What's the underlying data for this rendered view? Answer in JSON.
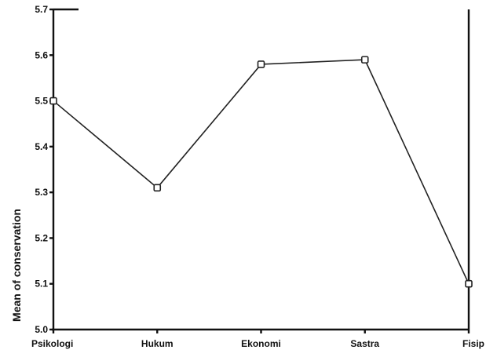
{
  "chart_data": {
    "type": "line",
    "title": "",
    "xlabel": "",
    "ylabel": "Mean of conservation",
    "categories": [
      "Psikologi",
      "Hukum",
      "Ekonomi",
      "Sastra",
      "Fisip"
    ],
    "series": [
      {
        "values": [
          5.5,
          5.31,
          5.58,
          5.59,
          5.1
        ]
      }
    ],
    "ylim": [
      5.0,
      5.7
    ],
    "yticks": [
      "5.0",
      "5.1",
      "5.2",
      "5.3",
      "5.4",
      "5.5",
      "5.6",
      "5.7"
    ],
    "grid": false,
    "legend": "none",
    "colors": {
      "line": "#222222",
      "axis": "#111111"
    }
  }
}
